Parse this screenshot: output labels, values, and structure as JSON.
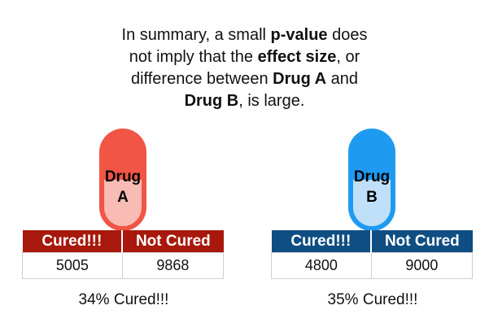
{
  "summary": {
    "line1_a": "In summary, a small ",
    "line1_b": "p-value",
    "line1_c": " does",
    "line2_a": "not imply that the ",
    "line2_b": "effect size",
    "line2_c": ", or",
    "line3_a": "difference between ",
    "line3_b": "Drug A",
    "line3_c": " and",
    "line4_a": "Drug B",
    "line4_b": ", is large."
  },
  "drug_a": {
    "label_top": "Drug",
    "label_bottom": "A",
    "colors": {
      "capsule": "#f05545",
      "lower": "#f8bcb4",
      "header": "#a8180c"
    },
    "headers": [
      "Cured!!!",
      "Not Cured"
    ],
    "values": [
      "5005",
      "9868"
    ],
    "summary": "34% Cured!!!"
  },
  "drug_b": {
    "label_top": "Drug",
    "label_bottom": "B",
    "colors": {
      "capsule": "#1e9bf0",
      "lower": "#bfe0f8",
      "header": "#0f4e82"
    },
    "headers": [
      "Cured!!!",
      "Not Cured"
    ],
    "values": [
      "4800",
      "9000"
    ],
    "summary": "35% Cured!!!"
  }
}
